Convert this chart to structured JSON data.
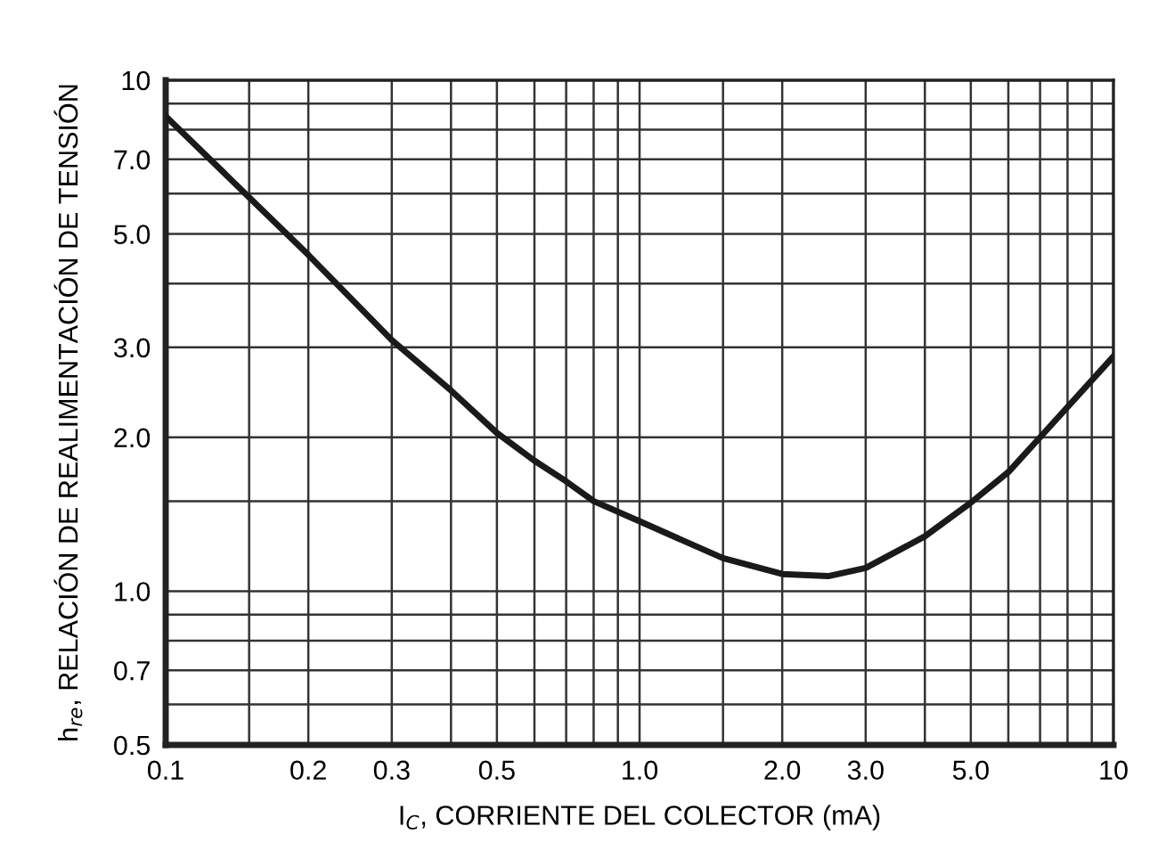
{
  "chart_data": {
    "type": "line",
    "xlabel": "I$_{C}$, CORRIENTE DEL COLECTOR (mA)",
    "ylabel": "h$_{re}$, RELACIÓN DE REALIMENTACIÓN DE TENSIÓN",
    "log": "xy",
    "grid": true,
    "marker": "none",
    "line_style": "solid",
    "xlim": [
      0.1,
      10
    ],
    "ylim": [
      0.5,
      10
    ],
    "xticks": [
      0.1,
      {
        "value": 0.15,
        "label": null
      },
      0.2,
      0.3,
      {
        "value": 0.4,
        "label": null
      },
      0.5,
      {
        "value": 0.6,
        "label": null
      },
      {
        "value": 0.7,
        "label": null
      },
      {
        "value": 0.8,
        "label": null
      },
      {
        "value": 0.9,
        "label": null
      },
      {
        "value": 1,
        "label": "1.0"
      },
      {
        "value": 1.5,
        "label": null
      },
      {
        "value": 2,
        "label": "2.0"
      },
      {
        "value": 3,
        "label": "3.0"
      },
      {
        "value": 4,
        "label": null
      },
      {
        "value": 5,
        "label": "5.0"
      },
      {
        "value": 6,
        "label": null
      },
      {
        "value": 7,
        "label": null
      },
      {
        "value": 8,
        "label": null
      },
      {
        "value": 9,
        "label": null
      },
      10
    ],
    "yticks": [
      0.5,
      {
        "value": 0.6,
        "label": null
      },
      0.7,
      {
        "value": 0.8,
        "label": null
      },
      {
        "value": 0.9,
        "label": null
      },
      {
        "value": 1,
        "label": "1.0"
      },
      {
        "value": 1.5,
        "label": null
      },
      {
        "value": 2,
        "label": "2.0"
      },
      {
        "value": 3,
        "label": "3.0"
      },
      {
        "value": 4,
        "label": null
      },
      {
        "value": 5,
        "label": "5.0"
      },
      {
        "value": 6,
        "label": null
      },
      {
        "value": 7,
        "label": "7.0"
      },
      {
        "value": 8,
        "label": null
      },
      {
        "value": 9,
        "label": null
      },
      10
    ],
    "series": [
      {
        "color": "#1a1a1a",
        "x": [
          0.1,
          0.15,
          0.2,
          0.3,
          0.4,
          0.5,
          0.6,
          0.7,
          0.8,
          1.0,
          1.5,
          2.0,
          2.5,
          3.0,
          4.0,
          5.0,
          6.0,
          7.0,
          10
        ],
        "values": [
          8.5,
          5.9,
          4.55,
          3.1,
          2.47,
          2.04,
          1.8,
          1.64,
          1.5,
          1.37,
          1.16,
          1.08,
          1.07,
          1.11,
          1.28,
          1.49,
          1.71,
          2.0,
          2.88
        ]
      }
    ]
  }
}
